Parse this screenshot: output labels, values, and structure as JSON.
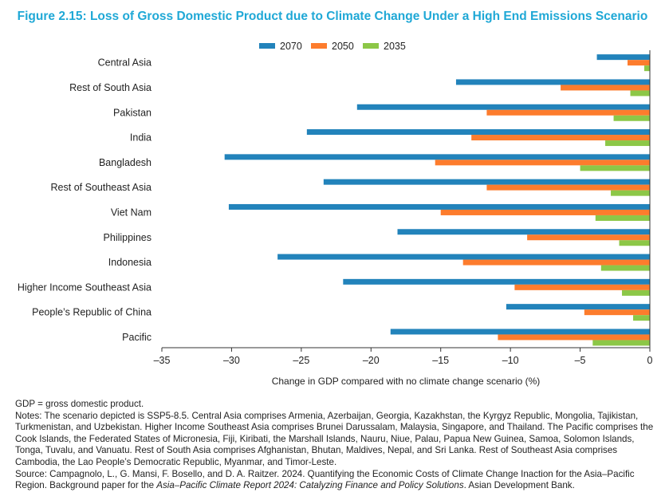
{
  "title": "Figure 2.15: Loss of Gross Domestic Product due to Climate Change Under a High End Emissions Scenario",
  "chart_data": {
    "type": "bar",
    "orientation": "horizontal",
    "categories": [
      "Central Asia",
      "Rest of South Asia",
      "Pakistan",
      "India",
      "Bangladesh",
      "Rest of Southeast Asia",
      "Viet Nam",
      "Philippines",
      "Indonesia",
      "Higher Income Southeast Asia",
      "People’s Republic of China",
      "Pacific"
    ],
    "series": [
      {
        "name": "2070",
        "color": "#2283bb",
        "values": [
          -3.8,
          -13.9,
          -21.0,
          -24.6,
          -30.5,
          -23.4,
          -30.2,
          -18.1,
          -26.7,
          -22.0,
          -10.3,
          -18.6
        ]
      },
      {
        "name": "2050",
        "color": "#fd7c2d",
        "values": [
          -1.6,
          -6.4,
          -11.7,
          -12.8,
          -15.4,
          -11.7,
          -15.0,
          -8.8,
          -13.4,
          -9.7,
          -4.7,
          -10.9
        ]
      },
      {
        "name": "2035",
        "color": "#8cc747",
        "values": [
          -0.4,
          -1.4,
          -2.6,
          -3.2,
          -5.0,
          -2.8,
          -3.9,
          -2.2,
          -3.5,
          -2.0,
          -1.2,
          -4.1
        ]
      }
    ],
    "xlabel": "Change in GDP compared with no climate change scenario (%)",
    "ylabel": "",
    "xlim": [
      -35,
      0
    ],
    "xticks": [
      -35,
      -30,
      -25,
      -20,
      -15,
      -10,
      -5,
      0
    ],
    "xtick_labels": [
      "–35",
      "–30",
      "–25",
      "–20",
      "–15",
      "–10",
      "–5",
      "0"
    ],
    "grid": false,
    "legend": "top-center"
  },
  "notes": {
    "abbrev": "GDP = gross domestic product.",
    "notes": "Notes: The scenario depicted is SSP5-8.5. Central Asia comprises Armenia, Azerbaijan, Georgia, Kazakhstan, the Kyrgyz Republic, Mongolia, Tajikistan, Turkmenistan, and Uzbekistan. Higher Income Southeast Asia comprises Brunei Darussalam, Malaysia, Singapore, and Thailand. The Pacific comprises the Cook Islands, the Federated States of Micronesia, Fiji, Kiribati, the Marshall Islands, Nauru, Niue, Palau, Papua New Guinea, Samoa, Solomon Islands, Tonga, Tuvalu, and Vanuatu. Rest of South Asia comprises Afghanistan, Bhutan, Maldives, Nepal, and Sri Lanka. Rest of Southeast Asia comprises Cambodia, the Lao People’s Democratic Republic, Myanmar, and Timor-Leste.",
    "source_pre": "Source: Campagnolo, L., G. Mansi, F. Bosello, and D. A. Raitzer. 2024. Quantifying the Economic Costs of Climate Change Inaction for the Asia–Pacific Region. Background paper for the ",
    "source_italic": "Asia–Pacific Climate Report 2024: Catalyzing Finance and Policy Solutions",
    "source_post": ". Asian Development Bank."
  }
}
